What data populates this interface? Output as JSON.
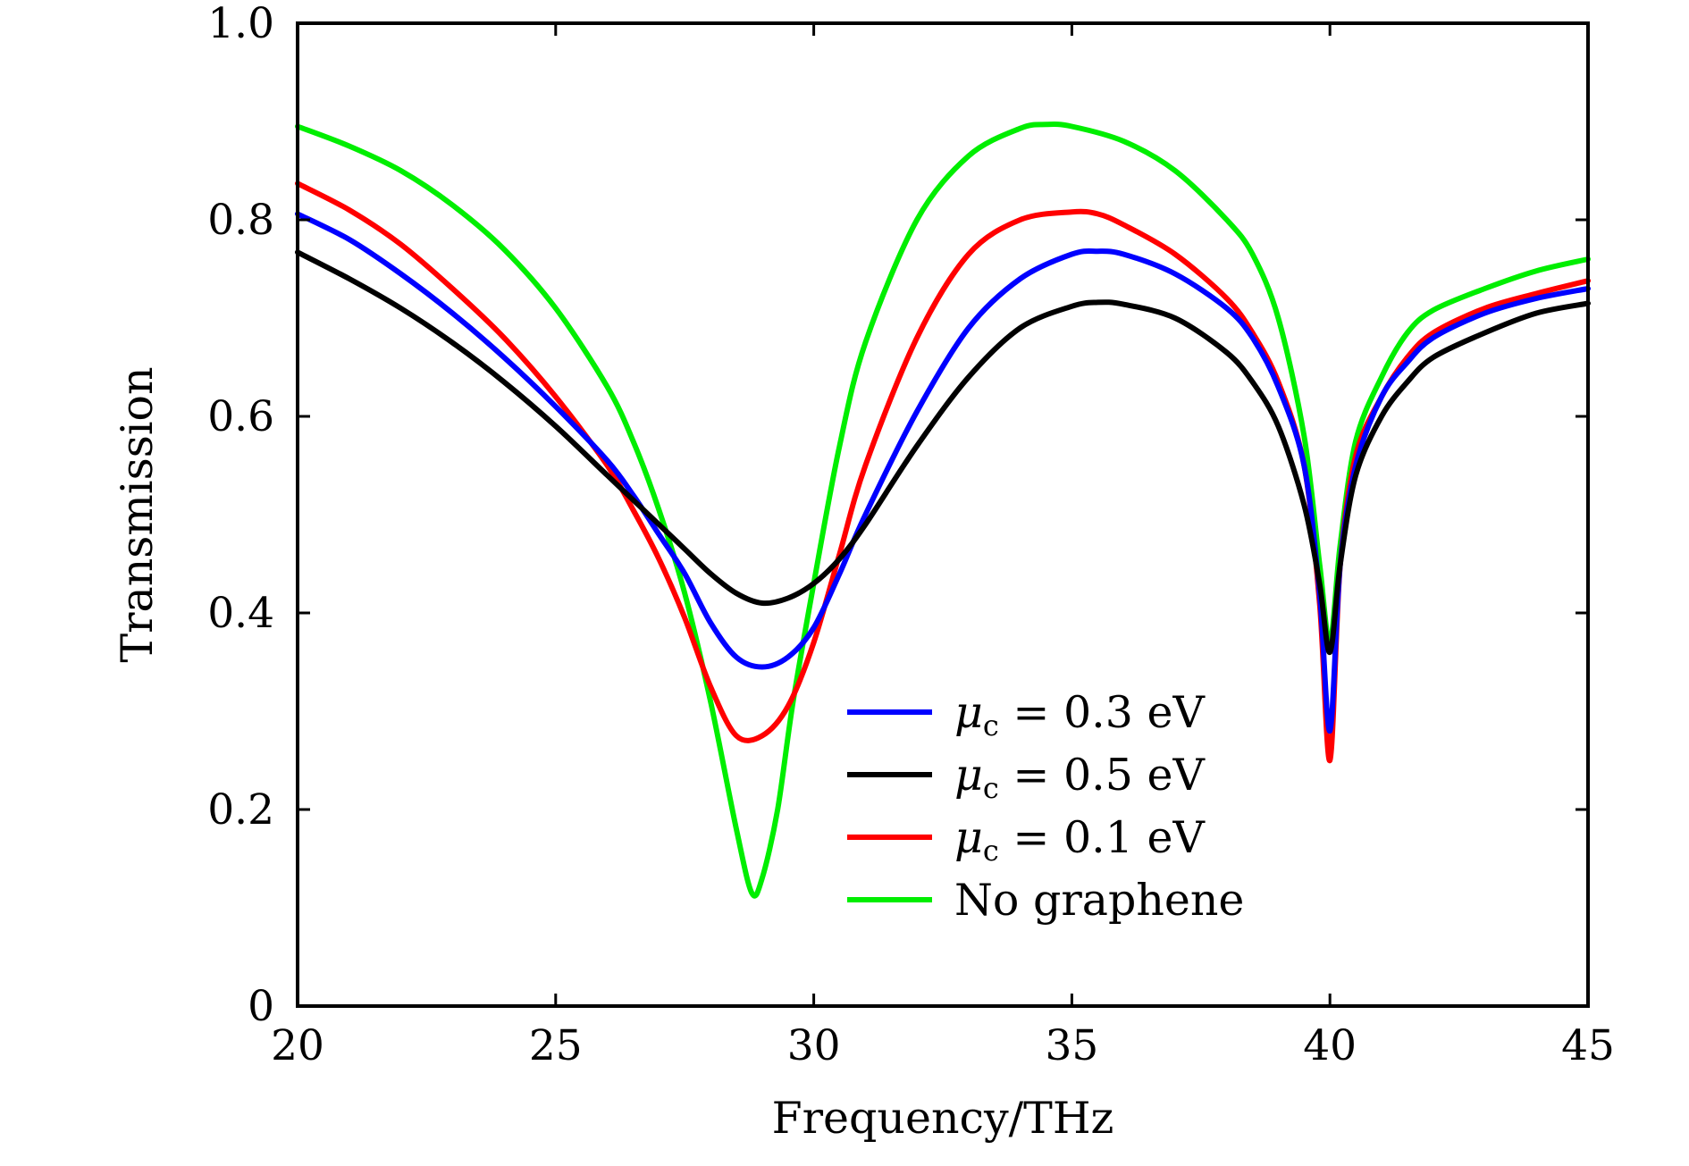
{
  "chart_data": {
    "type": "line",
    "xlabel": "Frequency/THz",
    "ylabel": "Transmission",
    "xlim": [
      20,
      45
    ],
    "ylim": [
      0,
      1.0
    ],
    "x_ticks": [
      "20",
      "25",
      "30",
      "35",
      "40",
      "45"
    ],
    "y_ticks": [
      "0",
      "0.2",
      "0.4",
      "0.6",
      "0.8",
      "1.0"
    ],
    "grid": false,
    "legend_position": "center-right",
    "series": [
      {
        "name": "μc = 0.3 eV",
        "color": "#0000ff",
        "x": [
          20,
          21,
          22,
          23,
          24,
          25,
          26,
          26.5,
          27,
          27.5,
          28,
          28.5,
          29,
          29.5,
          30,
          30.5,
          31,
          32,
          33,
          34,
          35,
          35.5,
          36,
          37,
          38,
          38.5,
          39,
          39.5,
          39.8,
          40,
          40.2,
          40.5,
          41,
          41.5,
          42,
          43,
          44,
          45
        ],
        "y": [
          0.806,
          0.78,
          0.745,
          0.705,
          0.66,
          0.61,
          0.555,
          0.52,
          0.48,
          0.44,
          0.39,
          0.355,
          0.345,
          0.355,
          0.385,
          0.44,
          0.5,
          0.605,
          0.69,
          0.74,
          0.765,
          0.768,
          0.765,
          0.745,
          0.71,
          0.68,
          0.63,
          0.55,
          0.42,
          0.28,
          0.45,
          0.55,
          0.62,
          0.655,
          0.68,
          0.705,
          0.72,
          0.73
        ]
      },
      {
        "name": "μc = 0.5 eV",
        "color": "#000000",
        "x": [
          20,
          21,
          22,
          23,
          24,
          25,
          26,
          27,
          27.5,
          28,
          28.5,
          29,
          29.5,
          30,
          30.5,
          31,
          32,
          33,
          34,
          35,
          35.5,
          36,
          37,
          38,
          38.5,
          39,
          39.5,
          39.8,
          40,
          40.2,
          40.5,
          41,
          41.5,
          42,
          43,
          44,
          45
        ],
        "y": [
          0.767,
          0.74,
          0.71,
          0.675,
          0.635,
          0.59,
          0.54,
          0.49,
          0.465,
          0.44,
          0.42,
          0.41,
          0.415,
          0.43,
          0.455,
          0.49,
          0.57,
          0.64,
          0.69,
          0.712,
          0.716,
          0.714,
          0.7,
          0.665,
          0.635,
          0.59,
          0.51,
          0.43,
          0.36,
          0.45,
          0.54,
          0.6,
          0.635,
          0.66,
          0.685,
          0.705,
          0.715
        ]
      },
      {
        "name": "μc = 0.1 eV",
        "color": "#ff0000",
        "x": [
          20,
          21,
          22,
          23,
          24,
          25,
          26,
          26.5,
          27,
          27.5,
          28,
          28.5,
          29,
          29.5,
          30,
          30.5,
          31,
          32,
          33,
          34,
          35,
          35.5,
          36,
          37,
          38,
          38.5,
          39,
          39.5,
          39.8,
          40,
          40.2,
          40.5,
          41,
          41.5,
          42,
          43,
          44,
          45
        ],
        "y": [
          0.837,
          0.81,
          0.775,
          0.73,
          0.68,
          0.62,
          0.55,
          0.505,
          0.455,
          0.395,
          0.325,
          0.275,
          0.275,
          0.305,
          0.37,
          0.46,
          0.55,
          0.68,
          0.765,
          0.8,
          0.808,
          0.806,
          0.795,
          0.765,
          0.72,
          0.685,
          0.635,
          0.55,
          0.41,
          0.25,
          0.45,
          0.56,
          0.62,
          0.66,
          0.685,
          0.71,
          0.725,
          0.738
        ]
      },
      {
        "name": "No graphene",
        "color": "#00ee00",
        "x": [
          20,
          21,
          22,
          23,
          24,
          25,
          26,
          26.5,
          27,
          27.5,
          28,
          28.5,
          28.8,
          29,
          29.3,
          29.6,
          30,
          30.5,
          31,
          32,
          33,
          34,
          34.5,
          35,
          36,
          37,
          38,
          38.5,
          39,
          39.5,
          39.8,
          40,
          40.2,
          40.5,
          41,
          41.5,
          42,
          43,
          44,
          45
        ],
        "y": [
          0.895,
          0.875,
          0.85,
          0.815,
          0.77,
          0.71,
          0.63,
          0.575,
          0.505,
          0.42,
          0.31,
          0.18,
          0.115,
          0.13,
          0.2,
          0.31,
          0.43,
          0.57,
          0.675,
          0.8,
          0.865,
          0.893,
          0.897,
          0.895,
          0.88,
          0.85,
          0.8,
          0.765,
          0.7,
          0.58,
          0.45,
          0.37,
          0.47,
          0.575,
          0.64,
          0.685,
          0.708,
          0.73,
          0.748,
          0.76
        ]
      }
    ],
    "legend": [
      {
        "symbol": "μ",
        "subscript": "c",
        "rest": " = 0.3 eV",
        "color": "#0000ff"
      },
      {
        "symbol": "μ",
        "subscript": "c",
        "rest": " = 0.5 eV",
        "color": "#000000"
      },
      {
        "symbol": "μ",
        "subscript": "c",
        "rest": " = 0.1 eV",
        "color": "#ff0000"
      },
      {
        "symbol": "",
        "subscript": "",
        "rest": "No graphene",
        "color": "#00ee00"
      }
    ]
  }
}
